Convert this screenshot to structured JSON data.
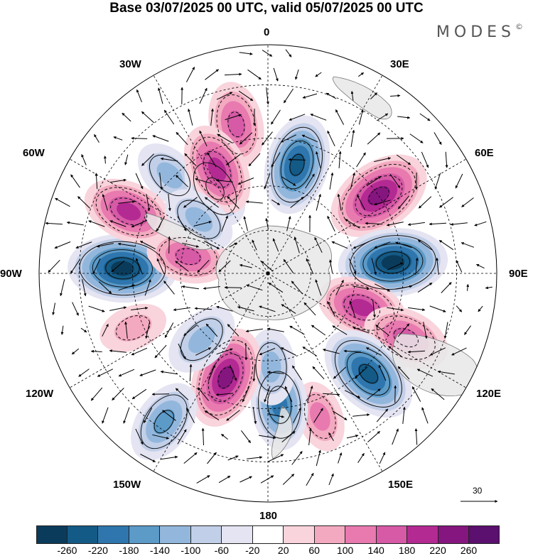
{
  "title": "Base 03/07/2025 00 UTC, valid 05/07/2025 00 UTC",
  "brand": {
    "name": "MODES",
    "mark": "©"
  },
  "map": {
    "projection": "south polar stereographic",
    "longitude_labels": [
      "0",
      "30E",
      "60E",
      "90E",
      "120E",
      "150E",
      "180",
      "150W",
      "120W",
      "90W",
      "60W",
      "30W"
    ],
    "colors": {
      "land": "#e8e8e8",
      "coast": "#777777",
      "graticule": "#000000",
      "contour": "#111111"
    },
    "anomaly_centers": [
      {
        "name": "high-30W",
        "value": 160,
        "lon": -12,
        "lat": -40
      },
      {
        "name": "low-15W",
        "value": -120,
        "lon": -45,
        "lat": -44
      },
      {
        "name": "low-40W",
        "value": -140,
        "lon": -32,
        "lat": -56
      },
      {
        "name": "high-20W",
        "value": 190,
        "lon": -26,
        "lat": -51
      },
      {
        "name": "low-20E",
        "value": -220,
        "lon": 15,
        "lat": -52
      },
      {
        "name": "high-50E",
        "value": 250,
        "lon": 55,
        "lat": -45
      },
      {
        "name": "low-80E",
        "value": -260,
        "lon": 85,
        "lat": -48
      },
      {
        "name": "high-110E",
        "value": 180,
        "lon": 110,
        "lat": -56
      },
      {
        "name": "high-100E",
        "value": 170,
        "lon": 115,
        "lat": -40
      },
      {
        "name": "low-135E",
        "value": -240,
        "lon": 135,
        "lat": -43
      },
      {
        "name": "high-160E",
        "value": 100,
        "lon": 160,
        "lat": -40
      },
      {
        "name": "low-170E",
        "value": -180,
        "lon": 175,
        "lat": -46
      },
      {
        "name": "low-175E",
        "value": -120,
        "lon": 178,
        "lat": -58
      },
      {
        "name": "high-155W",
        "value": 230,
        "lon": -158,
        "lat": -52
      },
      {
        "name": "low-140W",
        "value": -130,
        "lon": -135,
        "lat": -58
      },
      {
        "name": "high-115W",
        "value": 90,
        "lon": -112,
        "lat": -42
      },
      {
        "name": "low-140W-far",
        "value": -160,
        "lon": -145,
        "lat": -32
      },
      {
        "name": "low-90W",
        "value": -260,
        "lon": -88,
        "lat": -42
      },
      {
        "name": "high-65W",
        "value": 190,
        "lon": -66,
        "lat": -40
      },
      {
        "name": "high-75W",
        "value": 150,
        "lon": -78,
        "lat": -62
      },
      {
        "name": "low-55W",
        "value": -120,
        "lon": -52,
        "lat": -60
      }
    ],
    "wind_reference": {
      "label": "30"
    }
  },
  "colorbar": {
    "colors": [
      "#0b3b5a",
      "#145a86",
      "#2e76ad",
      "#5c9ac8",
      "#93b7dc",
      "#c2cfe8",
      "#e4e4f2",
      "#ffffff",
      "#f9d4dc",
      "#f3aac0",
      "#e87ab0",
      "#d65aa6",
      "#b42a93",
      "#86167f",
      "#5b0f6e"
    ],
    "labels": [
      "-260",
      "-220",
      "-180",
      "-140",
      "-100",
      "-60",
      "-20",
      "20",
      "60",
      "100",
      "140",
      "180",
      "220",
      "260"
    ],
    "min": -280,
    "max": 280
  }
}
